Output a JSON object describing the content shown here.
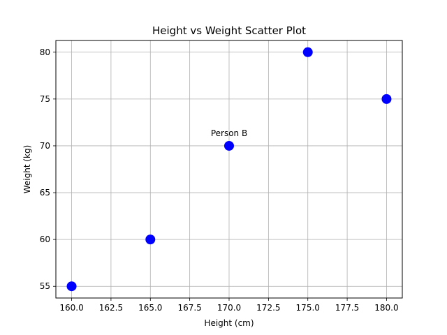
{
  "chart_data": {
    "type": "scatter",
    "title": "Height vs Weight Scatter Plot",
    "xlabel": "Height (cm)",
    "ylabel": "Weight (kg)",
    "xlim": [
      159.0,
      181.0
    ],
    "ylim": [
      53.75,
      81.25
    ],
    "xticks": [
      160.0,
      162.5,
      165.0,
      167.5,
      170.0,
      172.5,
      175.0,
      177.5,
      180.0
    ],
    "xtick_labels": [
      "160.0",
      "162.5",
      "165.0",
      "167.5",
      "170.0",
      "172.5",
      "175.0",
      "177.5",
      "180.0"
    ],
    "yticks": [
      55,
      60,
      65,
      70,
      75,
      80
    ],
    "ytick_labels": [
      "55",
      "60",
      "65",
      "70",
      "75",
      "80"
    ],
    "grid": true,
    "series": [
      {
        "color": "#0000ff",
        "points": [
          {
            "x": 160,
            "y": 55
          },
          {
            "x": 165,
            "y": 60
          },
          {
            "x": 170,
            "y": 70
          },
          {
            "x": 175,
            "y": 80
          },
          {
            "x": 180,
            "y": 75
          }
        ]
      }
    ],
    "annotations": [
      {
        "text": "Person B",
        "x": 170,
        "y": 70
      }
    ]
  }
}
